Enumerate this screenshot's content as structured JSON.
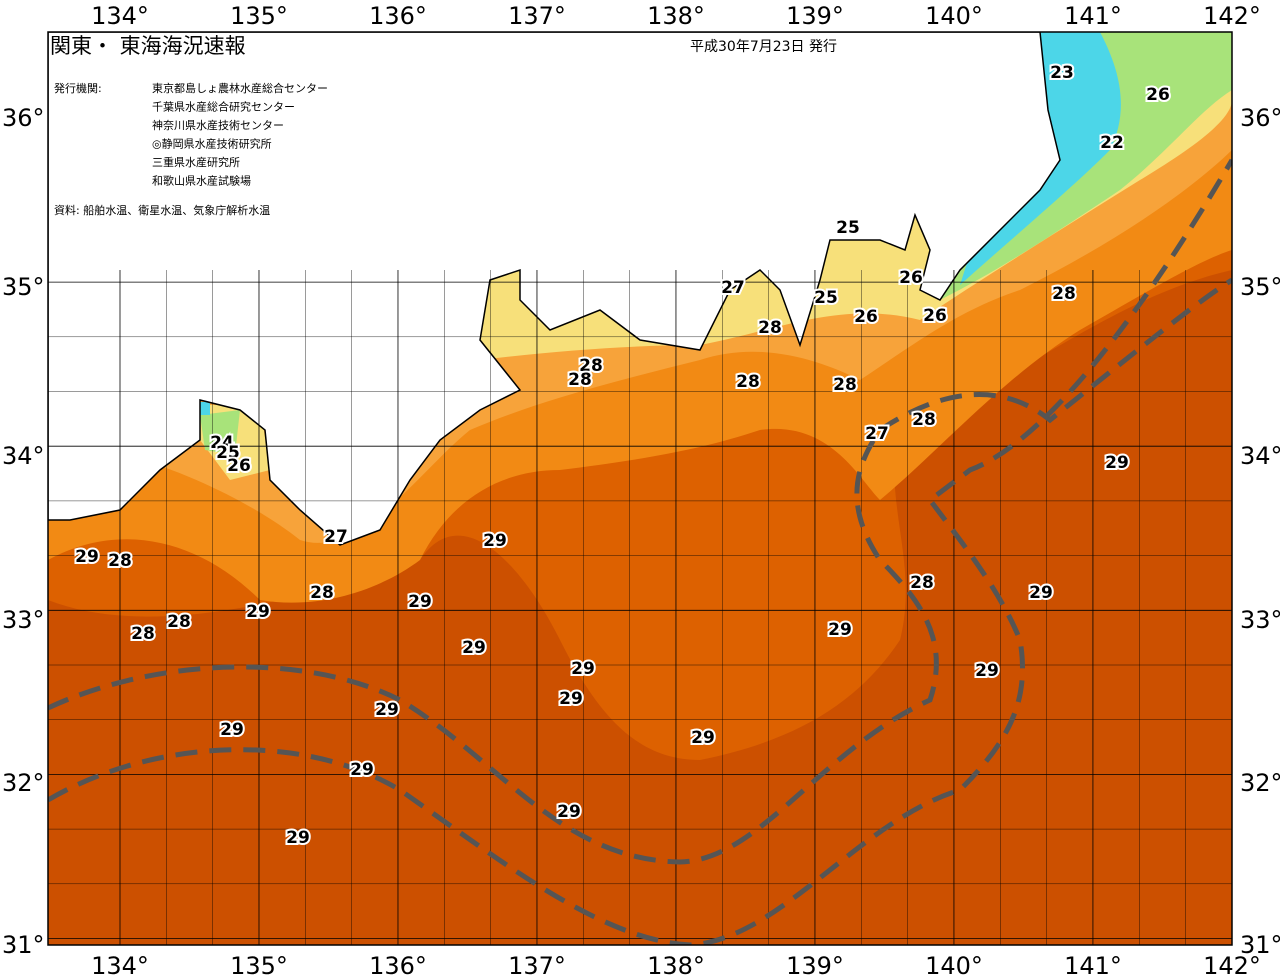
{
  "header": {
    "title": "関東・ 東海海況速報",
    "date": "平成30年7月23日 発行"
  },
  "issuers": {
    "label": "発行機関:",
    "list": [
      "東京都島しょ農林水産総合センター",
      "千葉県水産総合研究センター",
      "神奈川県水産技術センター",
      "◎静岡県水産技術研究所",
      "三重県水産研究所",
      "和歌山県水産試験場"
    ]
  },
  "source": "資料: 船舶水温、衛星水温、気象庁解析水温",
  "longitude_labels": [
    "134°",
    "135°",
    "136°",
    "137°",
    "138°",
    "139°",
    "140°",
    "141°",
    "142°"
  ],
  "latitude_labels": [
    "36°",
    "35°",
    "34°",
    "33°",
    "32°",
    "31°"
  ],
  "temperature_labels": [
    23,
    26,
    22,
    25,
    27,
    26,
    25,
    28,
    26,
    26,
    28,
    28,
    28,
    28,
    28,
    28,
    27,
    24,
    25,
    26,
    29,
    29,
    27,
    29,
    28,
    28,
    29,
    28,
    29,
    29,
    28,
    28,
    29,
    29,
    29,
    29,
    29,
    29,
    29,
    29,
    29,
    29,
    29
  ]
}
